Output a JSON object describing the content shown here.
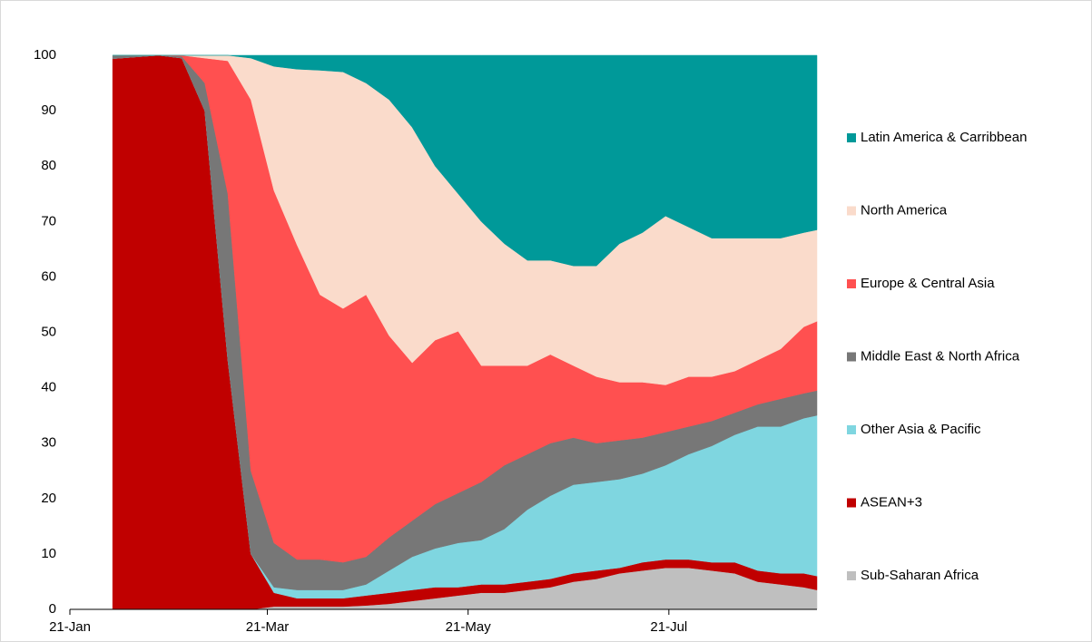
{
  "chart_data": {
    "type": "stacked_area",
    "x": [
      13,
      20,
      27,
      34,
      41,
      48,
      55,
      62,
      69,
      76,
      83,
      90,
      97,
      104,
      111,
      118,
      125,
      132,
      139,
      146,
      153,
      160,
      167,
      174,
      181,
      188,
      195,
      202,
      209,
      216,
      223,
      227
    ],
    "xlim": [
      0,
      227
    ],
    "xticks": [
      {
        "value": 0,
        "label": "21-Jan"
      },
      {
        "value": 60,
        "label": "21-Mar"
      },
      {
        "value": 121,
        "label": "21-May"
      },
      {
        "value": 182,
        "label": "21-Jul"
      }
    ],
    "ylim": [
      0,
      100
    ],
    "yticks": [
      0,
      10,
      20,
      30,
      40,
      50,
      60,
      70,
      80,
      90,
      100
    ],
    "grid": false,
    "legend": "right",
    "series": [
      {
        "name": "Sub-Saharan Africa",
        "color": "#bfbfbf",
        "values": [
          0,
          0,
          0,
          0,
          0,
          0,
          0,
          0.5,
          0.5,
          0.5,
          0.5,
          0.7,
          1,
          1.5,
          2,
          2.5,
          3,
          3,
          3.5,
          4,
          5,
          5.5,
          6.5,
          7,
          7.5,
          7.5,
          7,
          6.5,
          5,
          4.5,
          4,
          3.5
        ]
      },
      {
        "name": "ASEAN+3",
        "color": "#c00000",
        "values": [
          99.4,
          99.7,
          100,
          99.5,
          90,
          45,
          10,
          2.5,
          1.5,
          1.5,
          1.5,
          1.8,
          2,
          2,
          2,
          1.5,
          1.5,
          1.5,
          1.5,
          1.5,
          1.5,
          1.5,
          1,
          1.5,
          1.5,
          1.5,
          1.5,
          2,
          2,
          2,
          2.5,
          2.5
        ]
      },
      {
        "name": "Other Asia & Pacific",
        "color": "#7fd6e0",
        "values": [
          0,
          0,
          0,
          0,
          0,
          0,
          0,
          1,
          1.5,
          1.5,
          1.5,
          2,
          4,
          6,
          7,
          8,
          8,
          10,
          13,
          15,
          16,
          16,
          16,
          16,
          17,
          19,
          21,
          23,
          26,
          26.5,
          28,
          29
        ]
      },
      {
        "name": "Middle East & North Africa",
        "color": "#777777",
        "values": [
          0.6,
          0.3,
          0,
          0.3,
          5,
          30,
          15,
          8,
          5.5,
          5.5,
          5,
          5,
          6,
          6.5,
          8,
          9,
          10.5,
          11.5,
          10,
          9.5,
          8.5,
          7,
          7,
          6.5,
          6,
          5,
          4.5,
          4,
          4,
          5,
          4.5,
          4.5
        ]
      },
      {
        "name": "Europe & Central Asia",
        "color": "#ff5050",
        "values": [
          0,
          0,
          0,
          0.2,
          4.5,
          24,
          67,
          63.6,
          56.8,
          47.8,
          45.8,
          47.3,
          36.4,
          28.5,
          29.6,
          29.2,
          21,
          18,
          16,
          16,
          13,
          12,
          10.5,
          10,
          8.5,
          9,
          8,
          7.5,
          8,
          9,
          12,
          12.5
        ]
      },
      {
        "name": "North America",
        "color": "#fadbcb",
        "values": [
          0,
          0,
          0,
          0,
          0.5,
          1,
          7.5,
          22.4,
          31.7,
          40.5,
          42.7,
          38.2,
          42.6,
          42.5,
          31.4,
          24.8,
          26,
          22,
          19,
          17,
          18,
          20,
          25,
          27,
          30.5,
          27,
          25,
          24,
          22,
          20,
          17,
          16.5
        ]
      },
      {
        "name": "Latin America & Carribbean",
        "color": "#009999",
        "values": [
          0,
          0,
          0,
          0,
          0,
          0,
          0.5,
          2,
          2.5,
          2.7,
          3,
          5,
          8,
          13,
          20,
          25,
          30,
          34,
          37,
          37,
          38,
          38,
          34,
          32,
          29,
          31,
          33,
          33,
          33,
          33,
          32,
          31.5
        ]
      }
    ]
  }
}
